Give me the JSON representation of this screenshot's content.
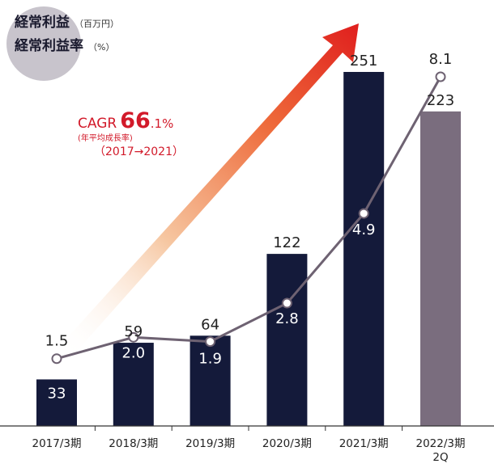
{
  "titles": {
    "profit": "経常利益",
    "profit_unit": "（百万円）",
    "margin": "経常利益率",
    "margin_unit": "（%）"
  },
  "cagr": {
    "label": "CAGR",
    "value_big": "66",
    "value_small": ".1%",
    "note": "(年平均成長率)",
    "period": "（2017→2021）"
  },
  "colors": {
    "bar_primary": "#141a3a",
    "bar_forecast": "#7a6d7e",
    "line": "#6e6272",
    "accent_red": "#d21a2a",
    "title_bubble": "#c8c4cc"
  },
  "chart_data": {
    "type": "bar",
    "categories": [
      "2017/3期",
      "2018/3期",
      "2019/3期",
      "2020/3期",
      "2021/3期",
      "2022/3期\n2Q"
    ],
    "bar_values": [
      33,
      59,
      64,
      122,
      251,
      223
    ],
    "bar_labels": [
      "33",
      "59",
      "64",
      "122",
      "251",
      "223"
    ],
    "line_values": [
      1.5,
      2.0,
      1.9,
      2.8,
      4.9,
      8.1
    ],
    "line_labels": [
      "1.5",
      "2.0",
      "1.9",
      "2.8",
      "4.9",
      "8.1"
    ],
    "bar_ylim": [
      0,
      251
    ],
    "line_ylim": [
      0,
      8.1
    ],
    "legend": "none",
    "grid": false
  }
}
